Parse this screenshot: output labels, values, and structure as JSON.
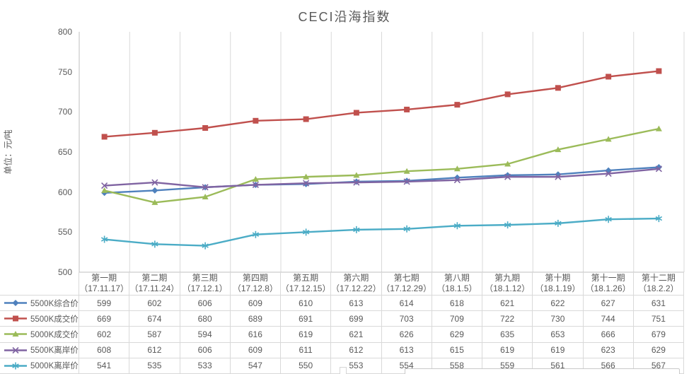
{
  "title": "CECI沿海指数",
  "y_axis_unit": "单位：元/吨",
  "colors": {
    "text": "#595959",
    "grid": "#D9D9D9",
    "axis": "#BFBFBF"
  },
  "chart_data": {
    "type": "line",
    "title": "CECI沿海指数",
    "xlabel": "",
    "ylabel": "单位：元/吨",
    "ylim": [
      500,
      800
    ],
    "yticks": [
      800,
      750,
      700,
      650,
      600,
      550,
      500
    ],
    "grid": "vertical-only",
    "legend_position": "table-left",
    "categories": [
      "第一期",
      "第二期",
      "第三期",
      "第四期",
      "第五期",
      "第六期",
      "第七期",
      "第八期",
      "第九期",
      "第十期",
      "第十一期",
      "第十二期"
    ],
    "category_dates": [
      "（17.11.17）",
      "（17.11.24）",
      "（17.12.1）",
      "（17.12.8）",
      "（17.12.15）",
      "（17.12.22）",
      "（17.12.29）",
      "（18.1.5）",
      "（18.1.12）",
      "（18.1.19）",
      "（18.1.26）",
      "（18.2.2）"
    ],
    "series": [
      {
        "name": "5500K综合价",
        "marker": "diamond",
        "color": "#4F81BD",
        "values": [
          599,
          602,
          606,
          609,
          610,
          613,
          614,
          618,
          621,
          622,
          627,
          631
        ]
      },
      {
        "name": "5500K成交价",
        "marker": "square",
        "color": "#C0504D",
        "values": [
          669,
          674,
          680,
          689,
          691,
          699,
          703,
          709,
          722,
          730,
          744,
          751
        ]
      },
      {
        "name": "5000K成交价",
        "marker": "triangle",
        "color": "#9BBB59",
        "values": [
          602,
          587,
          594,
          616,
          619,
          621,
          626,
          629,
          635,
          653,
          666,
          679
        ]
      },
      {
        "name": "5500K离岸价",
        "marker": "x",
        "color": "#8064A2",
        "values": [
          608,
          612,
          606,
          609,
          611,
          612,
          613,
          615,
          619,
          619,
          623,
          629
        ]
      },
      {
        "name": "5000K离岸价",
        "marker": "asterisk",
        "color": "#4BACC6",
        "values": [
          541,
          535,
          533,
          547,
          550,
          553,
          554,
          558,
          559,
          561,
          566,
          567
        ]
      }
    ]
  }
}
